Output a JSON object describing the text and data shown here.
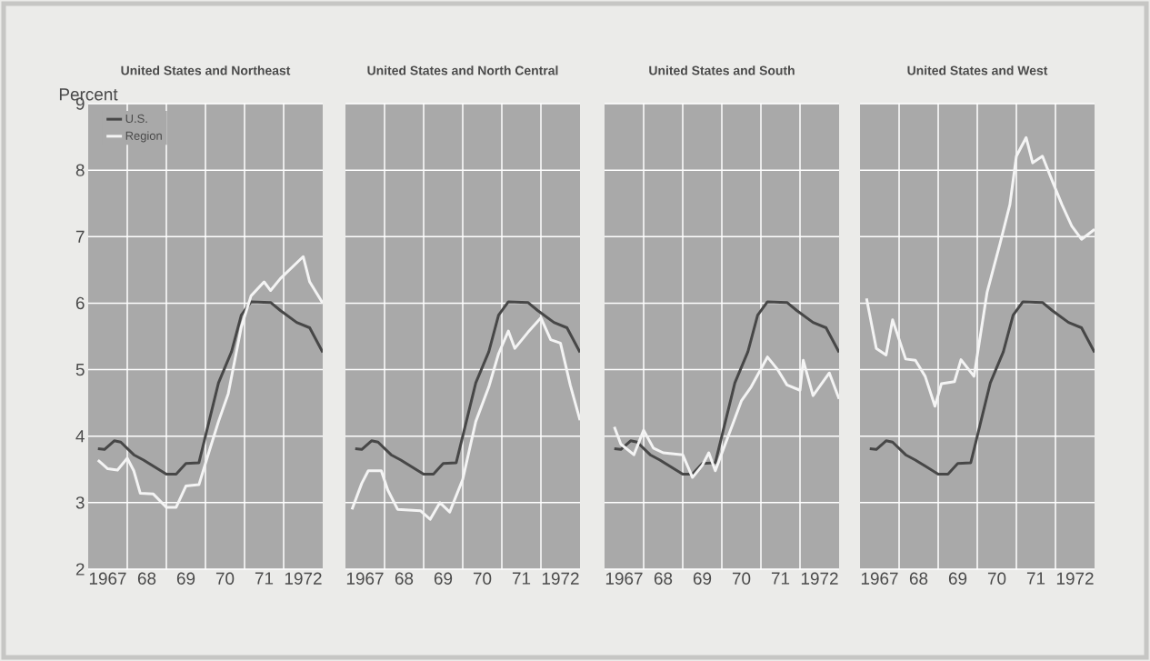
{
  "chart_data": [
    {
      "type": "line",
      "title": "United States and Northeast",
      "ylabel": "Percent",
      "xlim": [
        "1967-01",
        "1973-01"
      ],
      "ylim": [
        2,
        9
      ],
      "yticks": [
        2,
        3,
        4,
        5,
        6,
        7,
        8,
        9
      ],
      "xticks": [
        {
          "value": "1967-07",
          "label": "1967"
        },
        {
          "value": "1968-07",
          "label": "68"
        },
        {
          "value": "1969-07",
          "label": "69"
        },
        {
          "value": "1970-07",
          "label": "70"
        },
        {
          "value": "1971-07",
          "label": "71"
        },
        {
          "value": "1972-07",
          "label": "1972"
        },
        {
          "value": "1968-01",
          "label": null
        },
        {
          "value": "1969-01",
          "label": null
        },
        {
          "value": "1970-01",
          "label": null
        },
        {
          "value": "1971-01",
          "label": null
        },
        {
          "value": "1972-01",
          "label": null
        }
      ],
      "grid": true,
      "legend": "top left",
      "series": [
        {
          "name": "U.S.",
          "color": "#474747",
          "x": [
            "1967-04",
            "1967-06",
            "1967-09",
            "1967-11",
            "1968-03",
            "1968-06",
            "1969-01",
            "1969-04",
            "1969-07",
            "1969-11",
            "1970-05",
            "1970-09",
            "1970-12",
            "1971-03",
            "1971-09",
            "1971-12",
            "1972-05",
            "1972-09",
            "1973-01"
          ],
          "values": [
            3.81,
            3.8,
            3.93,
            3.91,
            3.72,
            3.64,
            3.43,
            3.43,
            3.59,
            3.6,
            4.8,
            5.27,
            5.82,
            6.02,
            6.01,
            5.89,
            5.71,
            5.63,
            5.26
          ]
        },
        {
          "name": "Region",
          "color": "#f4f4f4",
          "x": [
            "1967-04",
            "1967-07",
            "1967-10",
            "1968-01",
            "1968-03",
            "1968-05",
            "1968-09",
            "1969-01",
            "1969-04",
            "1969-07",
            "1969-11",
            "1970-02",
            "1970-05",
            "1970-08",
            "1970-12",
            "1971-03",
            "1971-07",
            "1971-09",
            "1971-12",
            "1972-07",
            "1972-09",
            "1973-01"
          ],
          "values": [
            3.64,
            3.51,
            3.49,
            3.67,
            3.48,
            3.14,
            3.13,
            2.93,
            2.93,
            3.25,
            3.27,
            3.75,
            4.22,
            4.64,
            5.64,
            6.11,
            6.32,
            6.19,
            6.37,
            6.7,
            6.32,
            6.0
          ]
        }
      ]
    },
    {
      "type": "line",
      "title": "United States and North Central",
      "xlim": [
        "1967-01",
        "1973-01"
      ],
      "ylim": [
        2,
        9
      ],
      "yticks": [
        2,
        3,
        4,
        5,
        6,
        7,
        8,
        9
      ],
      "tick_labels": "x",
      "xticks": [
        {
          "value": "1967-07",
          "label": "1967"
        },
        {
          "value": "1968-07",
          "label": "68"
        },
        {
          "value": "1969-07",
          "label": "69"
        },
        {
          "value": "1970-07",
          "label": "70"
        },
        {
          "value": "1971-07",
          "label": "71"
        },
        {
          "value": "1972-07",
          "label": "1972"
        },
        {
          "value": "1968-01",
          "label": null
        },
        {
          "value": "1969-01",
          "label": null
        },
        {
          "value": "1970-01",
          "label": null
        },
        {
          "value": "1971-01",
          "label": null
        },
        {
          "value": "1972-01",
          "label": null
        }
      ],
      "grid": true,
      "series": [
        {
          "color": "#474747",
          "x": [
            "1967-04",
            "1967-06",
            "1967-09",
            "1967-11",
            "1968-03",
            "1968-06",
            "1969-01",
            "1969-04",
            "1969-07",
            "1969-11",
            "1970-05",
            "1970-09",
            "1970-12",
            "1971-03",
            "1971-09",
            "1971-12",
            "1972-05",
            "1972-09",
            "1973-01"
          ],
          "values": [
            3.81,
            3.8,
            3.93,
            3.91,
            3.72,
            3.64,
            3.43,
            3.43,
            3.59,
            3.6,
            4.8,
            5.27,
            5.82,
            6.02,
            6.01,
            5.89,
            5.71,
            5.63,
            5.26
          ]
        },
        {
          "color": "#f4f4f4",
          "x": [
            "1967-03",
            "1967-06",
            "1967-08",
            "1967-12",
            "1968-02",
            "1968-05",
            "1968-12",
            "1969-03",
            "1969-06",
            "1969-09",
            "1970-01",
            "1970-05",
            "1970-09",
            "1970-12",
            "1971-03",
            "1971-05",
            "1971-09",
            "1972-01",
            "1972-04",
            "1972-07",
            "1972-10",
            "1973-01"
          ],
          "values": [
            2.9,
            3.29,
            3.48,
            3.48,
            3.19,
            2.9,
            2.88,
            2.75,
            3.0,
            2.86,
            3.35,
            4.22,
            4.74,
            5.24,
            5.58,
            5.32,
            5.56,
            5.78,
            5.45,
            5.4,
            4.77,
            4.24
          ]
        }
      ]
    },
    {
      "type": "line",
      "title": "United States and South",
      "xlim": [
        "1967-01",
        "1973-01"
      ],
      "ylim": [
        2,
        9
      ],
      "yticks": [
        2,
        3,
        4,
        5,
        6,
        7,
        8,
        9
      ],
      "tick_labels": "x",
      "xticks": [
        {
          "value": "1967-07",
          "label": "1967"
        },
        {
          "value": "1968-07",
          "label": "68"
        },
        {
          "value": "1969-07",
          "label": "69"
        },
        {
          "value": "1970-07",
          "label": "70"
        },
        {
          "value": "1971-07",
          "label": "71"
        },
        {
          "value": "1972-07",
          "label": "1972"
        },
        {
          "value": "1968-01",
          "label": null
        },
        {
          "value": "1969-01",
          "label": null
        },
        {
          "value": "1970-01",
          "label": null
        },
        {
          "value": "1971-01",
          "label": null
        },
        {
          "value": "1972-01",
          "label": null
        }
      ],
      "grid": true,
      "series": [
        {
          "color": "#474747",
          "x": [
            "1967-04",
            "1967-06",
            "1967-09",
            "1967-11",
            "1968-03",
            "1968-06",
            "1969-01",
            "1969-04",
            "1969-07",
            "1969-11",
            "1970-05",
            "1970-09",
            "1970-12",
            "1971-03",
            "1971-09",
            "1971-12",
            "1972-05",
            "1972-09",
            "1973-01"
          ],
          "values": [
            3.81,
            3.8,
            3.93,
            3.91,
            3.72,
            3.64,
            3.43,
            3.43,
            3.59,
            3.6,
            4.8,
            5.27,
            5.82,
            6.02,
            6.01,
            5.89,
            5.71,
            5.63,
            5.26
          ]
        },
        {
          "color": "#f4f4f4",
          "x": [
            "1967-04",
            "1967-06",
            "1967-10",
            "1968-01",
            "1968-04",
            "1968-07",
            "1969-01",
            "1969-04",
            "1969-07",
            "1969-09",
            "1969-11",
            "1970-07",
            "1970-10",
            "1971-03",
            "1971-06",
            "1971-09",
            "1972-01",
            "1972-02",
            "1972-05",
            "1972-10",
            "1973-01"
          ],
          "values": [
            4.14,
            3.88,
            3.72,
            4.09,
            3.82,
            3.75,
            3.72,
            3.38,
            3.56,
            3.75,
            3.48,
            4.53,
            4.74,
            5.19,
            5.01,
            4.77,
            4.69,
            5.14,
            4.61,
            4.95,
            4.56
          ]
        }
      ]
    },
    {
      "type": "line",
      "title": "United States and West",
      "xlim": [
        "1967-01",
        "1973-01"
      ],
      "ylim": [
        2,
        9
      ],
      "yticks": [
        2,
        3,
        4,
        5,
        6,
        7,
        8,
        9
      ],
      "tick_labels": "x",
      "xticks": [
        {
          "value": "1967-07",
          "label": "1967"
        },
        {
          "value": "1968-07",
          "label": "68"
        },
        {
          "value": "1969-07",
          "label": "69"
        },
        {
          "value": "1970-07",
          "label": "70"
        },
        {
          "value": "1971-07",
          "label": "71"
        },
        {
          "value": "1972-07",
          "label": "1972"
        },
        {
          "value": "1968-01",
          "label": null
        },
        {
          "value": "1969-01",
          "label": null
        },
        {
          "value": "1970-01",
          "label": null
        },
        {
          "value": "1971-01",
          "label": null
        },
        {
          "value": "1972-01",
          "label": null
        }
      ],
      "grid": true,
      "series": [
        {
          "color": "#474747",
          "x": [
            "1967-04",
            "1967-06",
            "1967-09",
            "1967-11",
            "1968-03",
            "1968-06",
            "1969-01",
            "1969-04",
            "1969-07",
            "1969-11",
            "1970-05",
            "1970-09",
            "1970-12",
            "1971-03",
            "1971-09",
            "1971-12",
            "1972-05",
            "1972-09",
            "1973-01"
          ],
          "values": [
            3.81,
            3.8,
            3.93,
            3.91,
            3.72,
            3.64,
            3.43,
            3.43,
            3.59,
            3.6,
            4.8,
            5.27,
            5.82,
            6.02,
            6.01,
            5.89,
            5.71,
            5.63,
            5.26
          ]
        },
        {
          "color": "#f4f4f4",
          "x": [
            "1967-03",
            "1967-06",
            "1967-09",
            "1967-11",
            "1968-03",
            "1968-06",
            "1968-09",
            "1968-12",
            "1969-02",
            "1969-06",
            "1969-08",
            "1969-12",
            "1970-04",
            "1970-08",
            "1970-11",
            "1971-01",
            "1971-04",
            "1971-06",
            "1971-09",
            "1971-12",
            "1972-03",
            "1972-06",
            "1972-09",
            "1973-01"
          ],
          "values": [
            6.07,
            5.32,
            5.22,
            5.75,
            5.16,
            5.14,
            4.9,
            4.45,
            4.79,
            4.82,
            5.15,
            4.9,
            6.16,
            6.9,
            7.48,
            8.21,
            8.49,
            8.11,
            8.21,
            7.84,
            7.48,
            7.16,
            6.96,
            7.11
          ]
        }
      ]
    }
  ]
}
